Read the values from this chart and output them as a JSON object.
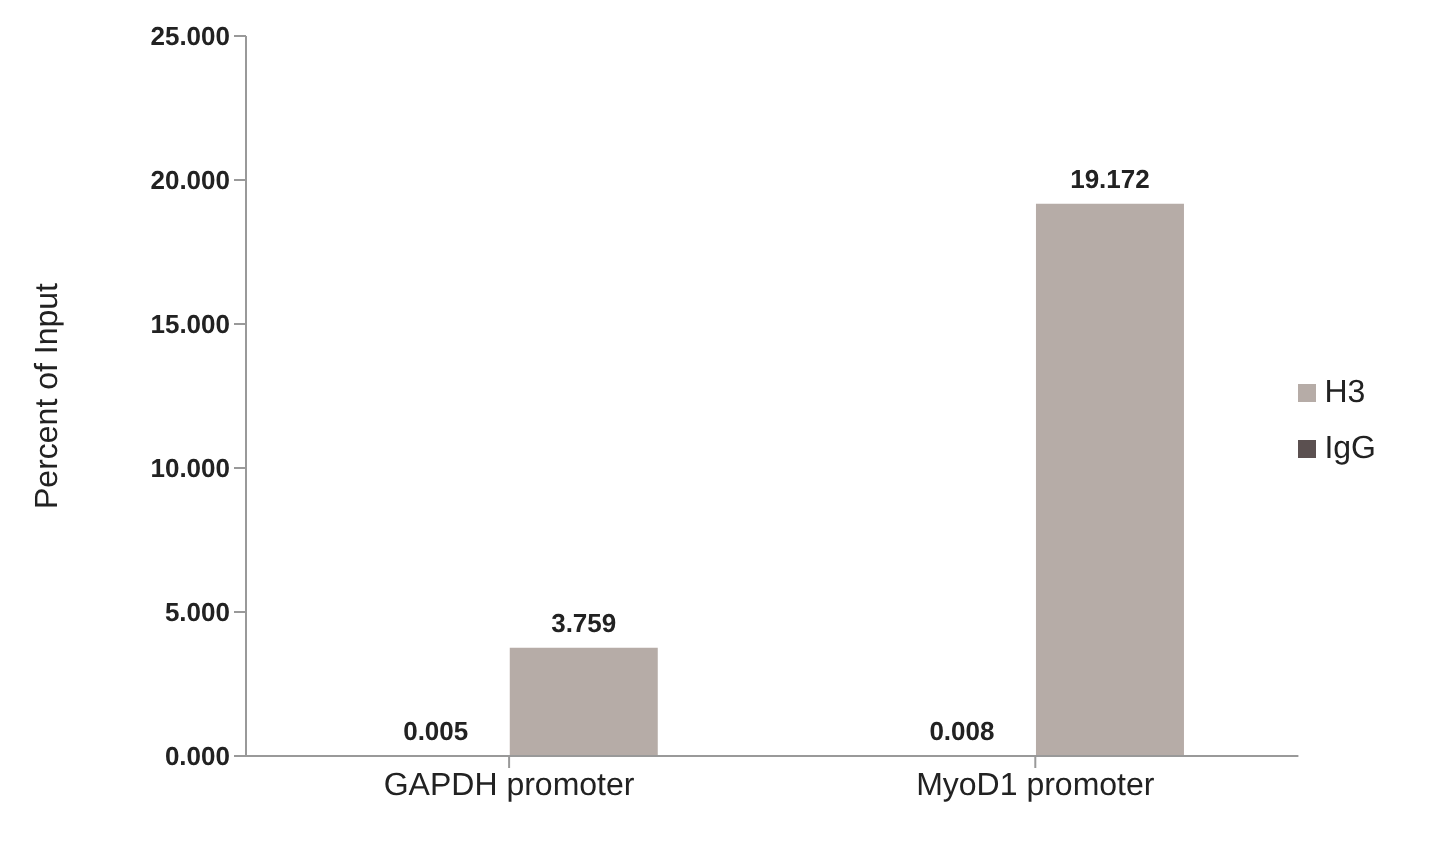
{
  "chart_data": {
    "type": "bar",
    "ylabel": "Percent of Input",
    "categories": [
      "GAPDH promoter",
      "MyoD1 promoter"
    ],
    "series": [
      {
        "name": "IgG",
        "color": "#5b5050",
        "values": [
          0.005,
          0.008
        ]
      },
      {
        "name": "H3",
        "color": "#b6aca7",
        "values": [
          3.759,
          19.172
        ]
      }
    ],
    "ylim": [
      0,
      25
    ],
    "yticks": [
      {
        "value": 0,
        "label": "0.000"
      },
      {
        "value": 5,
        "label": "5.000"
      },
      {
        "value": 10,
        "label": "10.000"
      },
      {
        "value": 15,
        "label": "15.000"
      },
      {
        "value": 20,
        "label": "20.000"
      },
      {
        "value": 25,
        "label": "25.000"
      }
    ],
    "data_labels": true,
    "grid": false,
    "legend": "right"
  }
}
